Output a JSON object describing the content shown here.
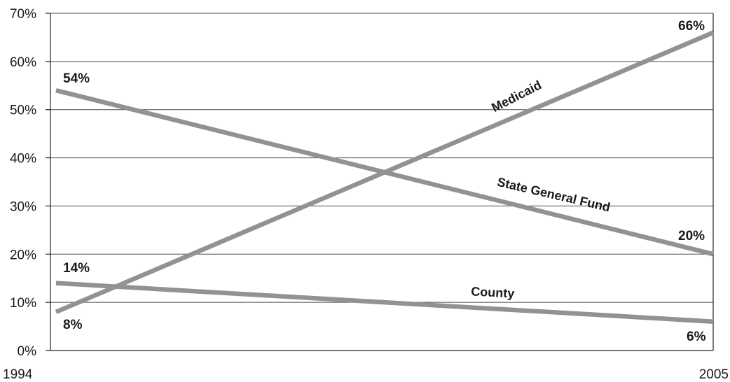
{
  "chart_data": {
    "type": "line",
    "title": "",
    "xlabel": "",
    "ylabel": "",
    "x": [
      "1994",
      "2005"
    ],
    "ylim": [
      0,
      70
    ],
    "yticks": [
      "0%",
      "10%",
      "20%",
      "30%",
      "40%",
      "50%",
      "60%",
      "70%"
    ],
    "ytick_values": [
      0,
      10,
      20,
      30,
      40,
      50,
      60,
      70
    ],
    "grid": true,
    "line_color": "#929292",
    "series": [
      {
        "name": "Medicaid",
        "values": [
          8,
          66
        ],
        "start_label": "8%",
        "end_label": "66%"
      },
      {
        "name": "State General Fund",
        "values": [
          54,
          20
        ],
        "start_label": "54%",
        "end_label": "20%"
      },
      {
        "name": "County",
        "values": [
          14,
          6
        ],
        "start_label": "14%",
        "end_label": "6%"
      }
    ]
  }
}
